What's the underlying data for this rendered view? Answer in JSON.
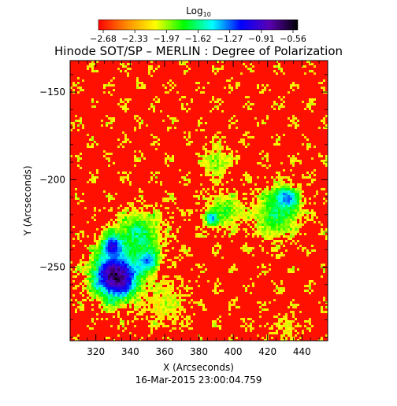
{
  "chart_data": {
    "type": "heatmap",
    "title": "Hinode SOT/SP – MERLIN : Degree of Polarization",
    "xlabel": "X (Arcseconds)",
    "ylabel": "Y (Arcseconds)",
    "timestamp": "16-Mar-2015 23:00:04.759",
    "colorbar": {
      "label_base": "Log",
      "label_sub": "10",
      "ticks": [
        "−2.68",
        "−2.33",
        "−1.97",
        "−1.62",
        "−1.27",
        "−0.91",
        "−0.56"
      ],
      "range": [
        -2.68,
        -0.56
      ],
      "colors": [
        "#ff0000",
        "#ff8c00",
        "#ffff00",
        "#00ff00",
        "#00ffff",
        "#0000ff",
        "#5a00b4",
        "#000000"
      ]
    },
    "xlim": [
      305,
      455
    ],
    "ylim": [
      -292,
      -132
    ],
    "xticks": [
      320,
      340,
      360,
      380,
      400,
      420,
      440
    ],
    "yticks": [
      -150,
      -200,
      -250
    ],
    "features": [
      {
        "x": 332,
        "y": -255,
        "size": 14,
        "level": -0.65
      },
      {
        "x": 330,
        "y": -238,
        "size": 6,
        "level": -0.8
      },
      {
        "x": 350,
        "y": -246,
        "size": 6,
        "level": -1.1
      },
      {
        "x": 388,
        "y": -222,
        "size": 4,
        "level": -0.85
      },
      {
        "x": 430,
        "y": -212,
        "size": 7,
        "level": -0.75
      },
      {
        "x": 345,
        "y": -232,
        "size": 14,
        "level": -1.6
      },
      {
        "x": 395,
        "y": -218,
        "size": 10,
        "level": -1.8
      },
      {
        "x": 425,
        "y": -220,
        "size": 14,
        "level": -1.7
      },
      {
        "x": 390,
        "y": -190,
        "size": 9,
        "level": -1.9
      },
      {
        "x": 362,
        "y": -270,
        "size": 13,
        "level": -2.0
      },
      {
        "x": 430,
        "y": -285,
        "size": 10,
        "level": -2.1
      }
    ]
  }
}
